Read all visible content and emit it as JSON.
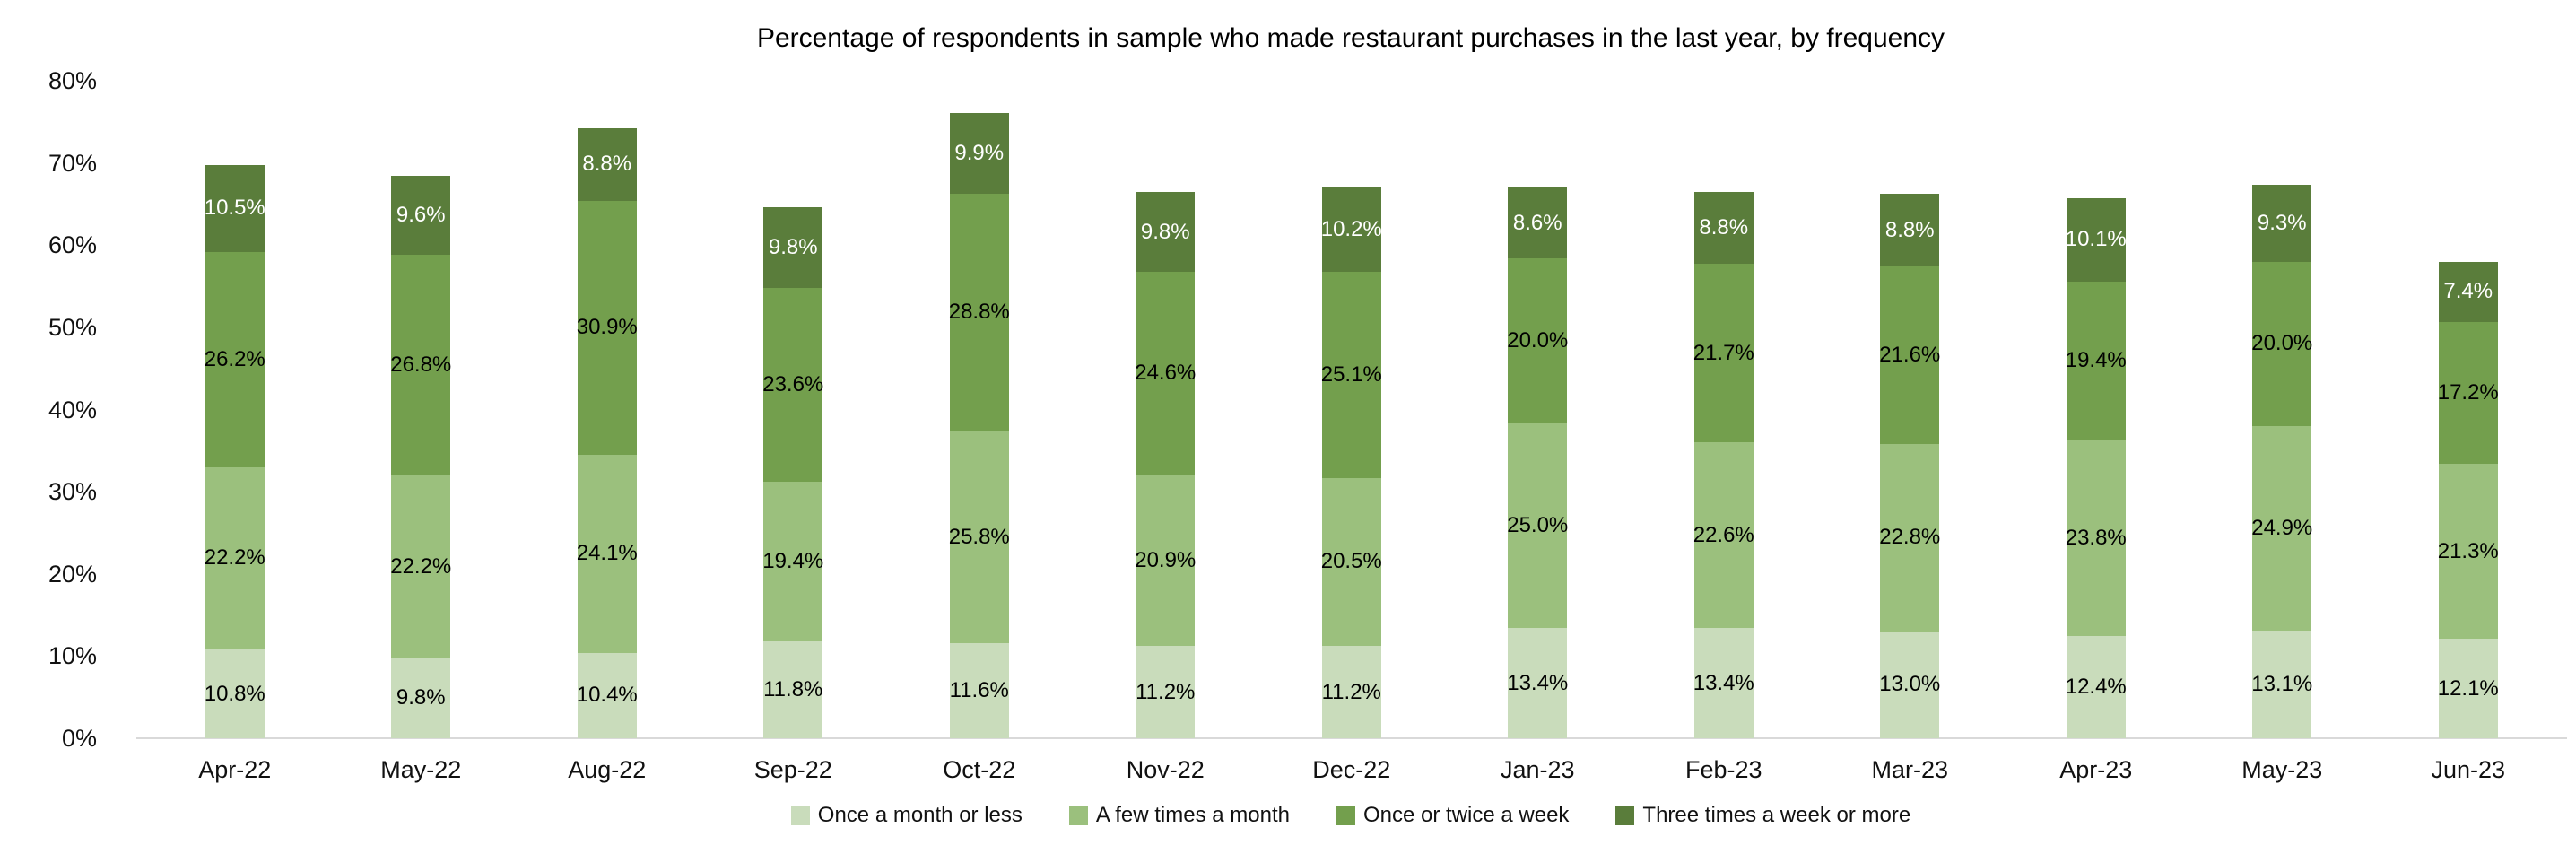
{
  "chart_data": {
    "type": "bar",
    "stacked": true,
    "title": "Percentage of respondents in sample who made restaurant purchases in the last year, by frequency",
    "categories": [
      "Apr-22",
      "May-22",
      "Aug-22",
      "Sep-22",
      "Oct-22",
      "Nov-22",
      "Dec-22",
      "Jan-23",
      "Feb-23",
      "Mar-23",
      "Apr-23",
      "May-23",
      "Jun-23"
    ],
    "series": [
      {
        "name": "Once a month or less",
        "color": "#c9dcbb",
        "label_color": "#000000",
        "values": [
          10.8,
          9.8,
          10.4,
          11.8,
          11.6,
          11.2,
          11.2,
          13.4,
          13.4,
          13.0,
          12.4,
          13.1,
          12.1
        ]
      },
      {
        "name": "A few times a month",
        "color": "#9bc07d",
        "label_color": "#000000",
        "values": [
          22.2,
          22.2,
          24.1,
          19.4,
          25.8,
          20.9,
          20.5,
          25.0,
          22.6,
          22.8,
          23.8,
          24.9,
          21.3
        ]
      },
      {
        "name": "Once or twice a week",
        "color": "#739f4d",
        "label_color": "#000000",
        "values": [
          26.2,
          26.8,
          30.9,
          23.6,
          28.8,
          24.6,
          25.1,
          20.0,
          21.7,
          21.6,
          19.4,
          20.0,
          17.2
        ]
      },
      {
        "name": "Three times a week or more",
        "color": "#5a7d3b",
        "label_color": "#ffffff",
        "values": [
          10.5,
          9.6,
          8.8,
          9.8,
          9.9,
          9.8,
          10.2,
          8.6,
          8.8,
          8.8,
          10.1,
          9.3,
          7.4
        ]
      }
    ],
    "value_suffix": "%",
    "value_decimals": 1,
    "xlabel": "",
    "ylabel": "",
    "ylim": [
      0,
      80
    ],
    "ytick_step": 10,
    "ytick_labels": [
      "0%",
      "10%",
      "20%",
      "30%",
      "40%",
      "50%",
      "60%",
      "70%",
      "80%"
    ],
    "grid": false,
    "legend_position": "bottom",
    "axis_line_color": "#d9d9d9",
    "background": "#ffffff"
  }
}
